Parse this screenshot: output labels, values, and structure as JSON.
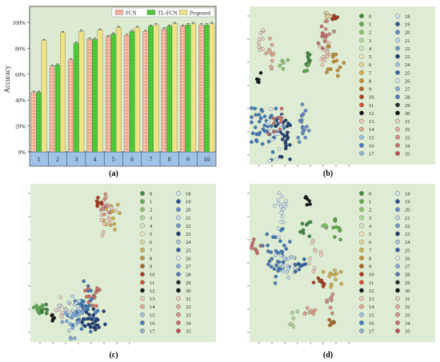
{
  "chart_data": [
    {
      "panel_label": "(a)",
      "type": "bar",
      "categories": [
        "1",
        "2",
        "3",
        "4",
        "5",
        "6",
        "7",
        "8",
        "9",
        "10"
      ],
      "ylabel": "Accuracy",
      "yticks": [
        "0%",
        "20%",
        "40%",
        "60%",
        "80%",
        "100%"
      ],
      "ylim": [
        0,
        100
      ],
      "legend_position": "top-right",
      "series": [
        {
          "name": "FCN",
          "color": "#f2a488",
          "pattern": "grid",
          "values": [
            46,
            66,
            71,
            87,
            89,
            90,
            93,
            95,
            97,
            98
          ]
        },
        {
          "name": "TL-FCN",
          "color": "#4fcf3a",
          "pattern": "dots",
          "values": [
            46,
            67,
            84,
            87,
            91,
            93,
            97,
            97,
            98,
            98
          ]
        },
        {
          "name": "Proposed",
          "color": "#efe283",
          "pattern": "solid",
          "values": [
            86,
            92,
            93,
            94,
            96,
            96,
            98,
            99,
            99,
            99
          ]
        }
      ]
    },
    {
      "panel_label": "(b)",
      "type": "scatter",
      "legend_position": "right",
      "legend_labels": [
        "0",
        "1",
        "2",
        "3",
        "4",
        "5",
        "6",
        "7",
        "8",
        "9",
        "10",
        "11",
        "12",
        "13",
        "14",
        "15",
        "16",
        "17",
        "18",
        "19",
        "20",
        "21",
        "22",
        "23",
        "24",
        "25",
        "26",
        "27",
        "28",
        "29",
        "30",
        "31",
        "32",
        "33",
        "34",
        "35"
      ],
      "clusters": [
        {
          "cls": 0,
          "x": 0.6,
          "y": 0.66,
          "sx": 0.015,
          "sy": 0.035,
          "n": 9
        },
        {
          "cls": 1,
          "x": 0.58,
          "y": 0.62,
          "sx": 0.02,
          "sy": 0.025,
          "n": 6
        },
        {
          "cls": 2,
          "x": 0.36,
          "y": 0.64,
          "sx": 0.02,
          "sy": 0.02,
          "n": 5
        },
        {
          "cls": 10,
          "x": 0.87,
          "y": 0.94,
          "sx": 0.02,
          "sy": 0.025,
          "n": 8
        },
        {
          "cls": 12,
          "x": 0.08,
          "y": 0.54,
          "sx": 0.015,
          "sy": 0.02,
          "n": 5
        },
        {
          "cls": 8,
          "x": 0.87,
          "y": 0.65,
          "sx": 0.04,
          "sy": 0.06,
          "n": 14
        },
        {
          "cls": 13,
          "x": 0.77,
          "y": 0.74,
          "sx": 0.04,
          "sy": 0.08,
          "n": 14
        },
        {
          "cls": 14,
          "x": 0.22,
          "y": 0.7,
          "sx": 0.02,
          "sy": 0.06,
          "n": 10
        },
        {
          "cls": 31,
          "x": 0.12,
          "y": 0.75,
          "sx": 0.03,
          "sy": 0.05,
          "n": 10
        },
        {
          "cls": 33,
          "x": 0.8,
          "y": 0.88,
          "sx": 0.03,
          "sy": 0.04,
          "n": 8
        },
        {
          "cls": 34,
          "x": 0.75,
          "y": 0.8,
          "sx": 0.02,
          "sy": 0.05,
          "n": 8
        },
        {
          "cls": 6,
          "x": 0.82,
          "y": 0.94,
          "sx": 0.03,
          "sy": 0.015,
          "n": 6
        },
        {
          "cls": 16,
          "x": 0.15,
          "y": 0.22,
          "sx": 0.09,
          "sy": 0.09,
          "n": 45
        },
        {
          "cls": 23,
          "x": 0.36,
          "y": 0.2,
          "sx": 0.05,
          "sy": 0.09,
          "n": 25
        },
        {
          "cls": 20,
          "x": 0.56,
          "y": 0.27,
          "sx": 0.04,
          "sy": 0.06,
          "n": 18
        },
        {
          "cls": 26,
          "x": 0.26,
          "y": 0.22,
          "sx": 0.05,
          "sy": 0.08,
          "n": 15
        },
        {
          "cls": 34,
          "x": 0.3,
          "y": 0.28,
          "sx": 0.04,
          "sy": 0.05,
          "n": 10
        }
      ]
    },
    {
      "panel_label": "(c)",
      "type": "scatter",
      "legend_position": "right",
      "legend_labels": [
        "0",
        "1",
        "2",
        "3",
        "4",
        "5",
        "6",
        "7",
        "8",
        "9",
        "10",
        "11",
        "12",
        "13",
        "14",
        "15",
        "16",
        "17",
        "18",
        "19",
        "20",
        "21",
        "22",
        "23",
        "24",
        "25",
        "26",
        "27",
        "28",
        "29",
        "30",
        "31",
        "32",
        "33",
        "34",
        "35"
      ],
      "clusters": [
        {
          "cls": 10,
          "x": 0.72,
          "y": 0.88,
          "sx": 0.03,
          "sy": 0.02,
          "n": 8
        },
        {
          "cls": 7,
          "x": 0.86,
          "y": 0.78,
          "sx": 0.04,
          "sy": 0.04,
          "n": 14
        },
        {
          "cls": 13,
          "x": 0.78,
          "y": 0.8,
          "sx": 0.04,
          "sy": 0.05,
          "n": 14
        },
        {
          "cls": 33,
          "x": 0.76,
          "y": 0.86,
          "sx": 0.03,
          "sy": 0.03,
          "n": 8
        },
        {
          "cls": 1,
          "x": 0.07,
          "y": 0.2,
          "sx": 0.03,
          "sy": 0.025,
          "n": 10
        },
        {
          "cls": 0,
          "x": 0.14,
          "y": 0.2,
          "sx": 0.02,
          "sy": 0.02,
          "n": 6
        },
        {
          "cls": 12,
          "x": 0.22,
          "y": 0.16,
          "sx": 0.015,
          "sy": 0.02,
          "n": 5
        },
        {
          "cls": 31,
          "x": 0.3,
          "y": 0.22,
          "sx": 0.03,
          "sy": 0.04,
          "n": 10
        },
        {
          "cls": 16,
          "x": 0.55,
          "y": 0.2,
          "sx": 0.08,
          "sy": 0.06,
          "n": 40
        },
        {
          "cls": 23,
          "x": 0.62,
          "y": 0.12,
          "sx": 0.06,
          "sy": 0.05,
          "n": 25
        },
        {
          "cls": 27,
          "x": 0.45,
          "y": 0.15,
          "sx": 0.06,
          "sy": 0.05,
          "n": 20
        },
        {
          "cls": 34,
          "x": 0.65,
          "y": 0.28,
          "sx": 0.05,
          "sy": 0.04,
          "n": 14
        },
        {
          "cls": 21,
          "x": 0.42,
          "y": 0.22,
          "sx": 0.05,
          "sy": 0.05,
          "n": 14
        }
      ]
    },
    {
      "panel_label": "(d)",
      "type": "scatter",
      "legend_position": "right",
      "legend_labels": [
        "0",
        "1",
        "2",
        "3",
        "4",
        "5",
        "6",
        "7",
        "8",
        "9",
        "10",
        "11",
        "12",
        "13",
        "14",
        "15",
        "16",
        "17",
        "18",
        "19",
        "20",
        "21",
        "22",
        "23",
        "24",
        "25",
        "26",
        "27",
        "28",
        "29",
        "30",
        "31",
        "32",
        "33",
        "34",
        "35"
      ],
      "clusters": [
        {
          "cls": 12,
          "x": 0.6,
          "y": 0.89,
          "sx": 0.02,
          "sy": 0.015,
          "n": 6
        },
        {
          "cls": 1,
          "x": 0.9,
          "y": 0.7,
          "sx": 0.02,
          "sy": 0.04,
          "n": 10
        },
        {
          "cls": 0,
          "x": 0.57,
          "y": 0.72,
          "sx": 0.025,
          "sy": 0.03,
          "n": 8
        },
        {
          "cls": 2,
          "x": 0.77,
          "y": 0.73,
          "sx": 0.015,
          "sy": 0.02,
          "n": 5
        },
        {
          "cls": 34,
          "x": 0.05,
          "y": 0.6,
          "sx": 0.03,
          "sy": 0.02,
          "n": 8
        },
        {
          "cls": 16,
          "x": 0.3,
          "y": 0.57,
          "sx": 0.07,
          "sy": 0.09,
          "n": 35
        },
        {
          "cls": 18,
          "x": 0.33,
          "y": 0.83,
          "sx": 0.04,
          "sy": 0.07,
          "n": 18
        },
        {
          "cls": 21,
          "x": 0.38,
          "y": 0.5,
          "sx": 0.07,
          "sy": 0.05,
          "n": 20
        },
        {
          "cls": 10,
          "x": 0.72,
          "y": 0.38,
          "sx": 0.03,
          "sy": 0.015,
          "n": 8
        },
        {
          "cls": 7,
          "x": 0.85,
          "y": 0.42,
          "sx": 0.04,
          "sy": 0.04,
          "n": 12
        },
        {
          "cls": 33,
          "x": 0.8,
          "y": 0.25,
          "sx": 0.03,
          "sy": 0.04,
          "n": 8
        },
        {
          "cls": 14,
          "x": 0.6,
          "y": 0.2,
          "sx": 0.03,
          "sy": 0.03,
          "n": 8
        },
        {
          "cls": 3,
          "x": 0.45,
          "y": 0.14,
          "sx": 0.02,
          "sy": 0.03,
          "n": 6
        },
        {
          "cls": 9,
          "x": 0.83,
          "y": 0.12,
          "sx": 0.02,
          "sy": 0.02,
          "n": 6
        },
        {
          "cls": 31,
          "x": 0.67,
          "y": 0.55,
          "sx": 0.04,
          "sy": 0.05,
          "n": 10
        },
        {
          "cls": 25,
          "x": 0.5,
          "y": 0.48,
          "sx": 0.04,
          "sy": 0.04,
          "n": 10
        }
      ]
    }
  ],
  "palette": [
    "#3c8d3f",
    "#5fb04a",
    "#8bc870",
    "#b3dba0",
    "#d7edc8",
    "#f3edc6",
    "#eadb9a",
    "#d9b34a",
    "#c8912e",
    "#b5681f",
    "#b13a19",
    "#d9522f",
    "#111111",
    "#f4c9b8",
    "#e8a88f",
    "#9ec6e6",
    "#3f7fc1",
    "#8fb3d8",
    "#d4e6f4",
    "#2b5aa0",
    "#5b8fd0",
    "#c2d8ee",
    "#6a9bd4",
    "#1d3f7a",
    "#a9c7e8",
    "#3466b0",
    "#e0edf8",
    "#82aee0",
    "#4d7fc4",
    "#2a2a2a",
    "#000000",
    "#f1d2cc",
    "#e4b0a6",
    "#d98e86",
    "#cf6e68",
    "#c24c4c"
  ]
}
